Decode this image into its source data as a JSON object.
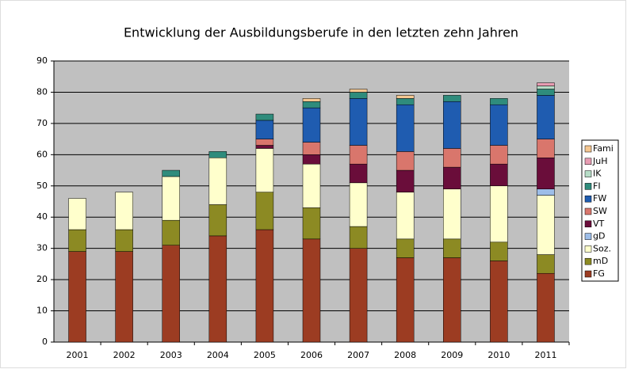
{
  "chart_data": {
    "type": "stacked_bar",
    "title": "Entwicklung der Ausbildungsberufe in den letzten zehn Jahren",
    "categories": [
      "2001",
      "2002",
      "2003",
      "2004",
      "2005",
      "2006",
      "2007",
      "2008",
      "2009",
      "2010",
      "2011"
    ],
    "ylim": [
      0,
      90
    ],
    "yticks": [
      0,
      10,
      20,
      30,
      40,
      50,
      60,
      70,
      80,
      90
    ],
    "grid": true,
    "series": [
      {
        "name": "FG",
        "color": "#9c3c22",
        "values": [
          29,
          29,
          31,
          34,
          36,
          33,
          30,
          27,
          27,
          26,
          22
        ]
      },
      {
        "name": "mD",
        "color": "#8c8a23",
        "values": [
          7,
          7,
          8,
          10,
          12,
          10,
          7,
          6,
          6,
          6,
          6
        ]
      },
      {
        "name": "Soz.",
        "color": "#ffffcc",
        "values": [
          10,
          12,
          14,
          15,
          14,
          14,
          14,
          15,
          16,
          18,
          19
        ]
      },
      {
        "name": "gD",
        "color": "#9dbde8",
        "values": [
          null,
          null,
          null,
          null,
          null,
          null,
          null,
          null,
          null,
          null,
          2
        ]
      },
      {
        "name": "VT",
        "color": "#6a0d3a",
        "values": [
          null,
          null,
          null,
          null,
          1,
          3,
          6,
          7,
          7,
          7,
          10
        ]
      },
      {
        "name": "SW",
        "color": "#d9766c",
        "values": [
          null,
          null,
          null,
          null,
          2,
          4,
          6,
          6,
          6,
          6,
          6
        ]
      },
      {
        "name": "FW",
        "color": "#1f5cb0",
        "values": [
          null,
          null,
          null,
          null,
          6,
          11,
          15,
          15,
          15,
          13,
          14
        ]
      },
      {
        "name": "FI",
        "color": "#2f8c7c",
        "values": [
          null,
          null,
          2,
          2,
          2,
          2,
          2,
          2,
          2,
          2,
          2
        ]
      },
      {
        "name": "IK",
        "color": "#b6dcc6",
        "values": [
          null,
          null,
          null,
          null,
          null,
          null,
          null,
          null,
          null,
          null,
          1
        ]
      },
      {
        "name": "JuH",
        "color": "#e89cb2",
        "values": [
          null,
          null,
          null,
          null,
          null,
          null,
          null,
          null,
          null,
          null,
          1
        ]
      },
      {
        "name": "Fami",
        "color": "#f4c690",
        "values": [
          null,
          null,
          null,
          null,
          null,
          1,
          1,
          1,
          null,
          null,
          null
        ]
      }
    ]
  }
}
